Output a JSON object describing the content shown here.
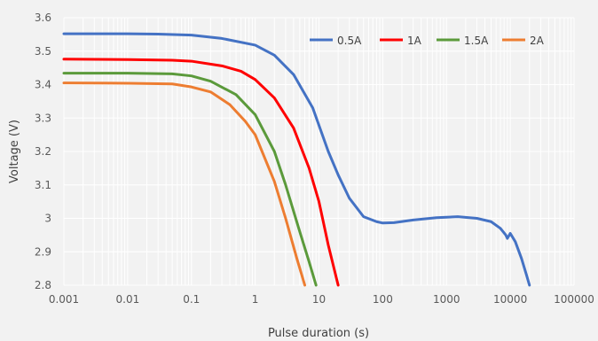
{
  "chart_data": {
    "type": "line",
    "title": "",
    "xlabel": "Pulse duration (s)",
    "ylabel": "Voltage (V)",
    "x_scale": "log",
    "xlim": [
      0.001,
      100000
    ],
    "ylim": [
      2.8,
      3.6
    ],
    "x_ticks": [
      "0.001",
      "0.01",
      "0.1",
      "1",
      "10",
      "100",
      "1000",
      "10000",
      "100000"
    ],
    "y_ticks": [
      "2.8",
      "2.9",
      "3",
      "3.1",
      "3.2",
      "3.3",
      "3.4",
      "3.5",
      "3.6"
    ],
    "grid": true,
    "legend_position": "top-right",
    "series": [
      {
        "name": "0.5A",
        "color": "#4472c4",
        "x": [
          0.001,
          0.01,
          0.03,
          0.1,
          0.3,
          1,
          2,
          4,
          8,
          14,
          20,
          30,
          50,
          80,
          100,
          150,
          300,
          700,
          1500,
          3000,
          5000,
          7000,
          8500,
          9000,
          10000,
          12000,
          15000,
          18000,
          20000
        ],
        "y": [
          3.552,
          3.552,
          3.551,
          3.548,
          3.538,
          3.518,
          3.488,
          3.43,
          3.33,
          3.2,
          3.13,
          3.06,
          3.005,
          2.99,
          2.986,
          2.987,
          2.995,
          3.002,
          3.005,
          3.0,
          2.99,
          2.97,
          2.95,
          2.94,
          2.955,
          2.93,
          2.88,
          2.83,
          2.8
        ]
      },
      {
        "name": "1A",
        "color": "#ff0000",
        "x": [
          0.001,
          0.01,
          0.05,
          0.1,
          0.3,
          0.6,
          1,
          2,
          4,
          7,
          10,
          14,
          20
        ],
        "y": [
          3.476,
          3.475,
          3.473,
          3.47,
          3.456,
          3.44,
          3.415,
          3.36,
          3.27,
          3.15,
          3.05,
          2.92,
          2.8
        ]
      },
      {
        "name": "1.5A",
        "color": "#5b9a3b",
        "x": [
          0.001,
          0.01,
          0.05,
          0.1,
          0.2,
          0.5,
          1,
          2,
          3,
          5,
          7,
          9
        ],
        "y": [
          3.434,
          3.434,
          3.432,
          3.426,
          3.41,
          3.37,
          3.31,
          3.2,
          3.1,
          2.96,
          2.87,
          2.8
        ]
      },
      {
        "name": "2A",
        "color": "#ed7d31",
        "x": [
          0.001,
          0.01,
          0.05,
          0.1,
          0.2,
          0.4,
          0.7,
          1,
          2,
          3,
          4.5,
          6
        ],
        "y": [
          3.405,
          3.404,
          3.402,
          3.393,
          3.378,
          3.34,
          3.29,
          3.25,
          3.11,
          3.0,
          2.88,
          2.8
        ]
      }
    ]
  }
}
